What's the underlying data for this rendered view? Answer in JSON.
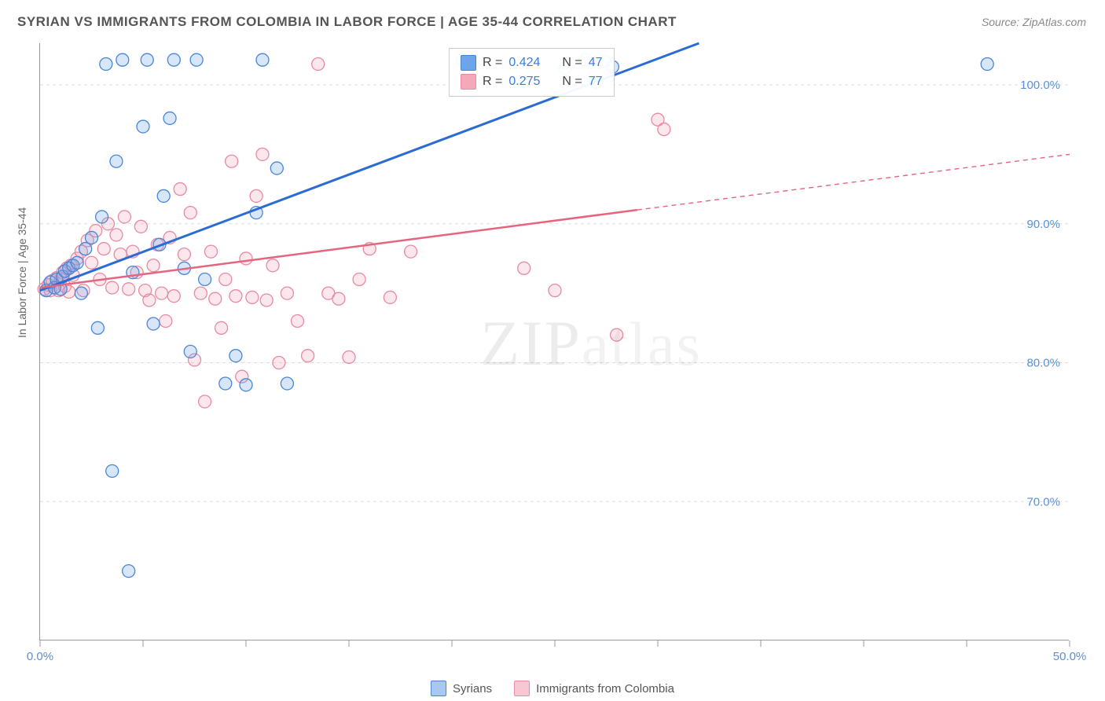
{
  "title": "SYRIAN VS IMMIGRANTS FROM COLOMBIA IN LABOR FORCE | AGE 35-44 CORRELATION CHART",
  "source": "Source: ZipAtlas.com",
  "ylabel": "In Labor Force | Age 35-44",
  "watermark_a": "ZIP",
  "watermark_b": "atlas",
  "chart": {
    "type": "scatter",
    "xlim": [
      0,
      50
    ],
    "ylim": [
      60,
      103
    ],
    "xtick_positions": [
      0,
      5,
      10,
      15,
      20,
      25,
      30,
      35,
      40,
      45,
      50
    ],
    "xtick_labels_shown": {
      "0": "0.0%",
      "50": "50.0%"
    },
    "ytick_positions": [
      70,
      80,
      90,
      100
    ],
    "ytick_labels": [
      "70.0%",
      "80.0%",
      "90.0%",
      "100.0%"
    ],
    "grid_color": "#dddddd",
    "background_color": "#ffffff",
    "axis_color": "#999999",
    "tick_label_color": "#5b8fd6",
    "marker_radius": 8,
    "marker_stroke_width": 1.3,
    "marker_fill_opacity": 0.28,
    "series": [
      {
        "name": "Syrians",
        "color": "#6ea4e8",
        "stroke": "#4a86d8",
        "line_color": "#2b6cd4",
        "line_width": 3,
        "r": 0.424,
        "n": 47,
        "trend": {
          "x1": 0,
          "y1": 85.2,
          "x2": 32,
          "y2": 103
        },
        "points": [
          [
            0.3,
            85.2
          ],
          [
            0.5,
            85.8
          ],
          [
            0.7,
            85.4
          ],
          [
            0.8,
            86.0
          ],
          [
            1.0,
            85.3
          ],
          [
            1.1,
            86.2
          ],
          [
            1.2,
            86.6
          ],
          [
            1.4,
            86.8
          ],
          [
            1.6,
            87.0
          ],
          [
            1.8,
            87.2
          ],
          [
            2.0,
            85.0
          ],
          [
            2.2,
            88.2
          ],
          [
            2.5,
            89.0
          ],
          [
            2.8,
            82.5
          ],
          [
            3.0,
            90.5
          ],
          [
            3.2,
            101.5
          ],
          [
            3.5,
            72.2
          ],
          [
            3.7,
            94.5
          ],
          [
            4.0,
            101.8
          ],
          [
            4.3,
            65.0
          ],
          [
            4.5,
            86.5
          ],
          [
            5.0,
            97.0
          ],
          [
            5.2,
            101.8
          ],
          [
            5.5,
            82.8
          ],
          [
            5.8,
            88.5
          ],
          [
            6.0,
            92.0
          ],
          [
            6.3,
            97.6
          ],
          [
            6.5,
            101.8
          ],
          [
            7.0,
            86.8
          ],
          [
            7.3,
            80.8
          ],
          [
            7.6,
            101.8
          ],
          [
            8.0,
            86.0
          ],
          [
            9.0,
            78.5
          ],
          [
            9.5,
            80.5
          ],
          [
            10.0,
            78.4
          ],
          [
            10.5,
            90.8
          ],
          [
            10.8,
            101.8
          ],
          [
            11.5,
            94.0
          ],
          [
            12.0,
            78.5
          ],
          [
            20.5,
            101.8
          ],
          [
            25.5,
            101.2
          ],
          [
            26.5,
            101.8
          ],
          [
            27.0,
            100.2
          ],
          [
            27.4,
            101.7
          ],
          [
            27.8,
            101.3
          ],
          [
            46.0,
            101.5
          ]
        ]
      },
      {
        "name": "Immigrants from Colombia",
        "color": "#f4a9bb",
        "stroke": "#e88aa3",
        "line_color": "#e5647f",
        "line_width": 2.5,
        "r": 0.275,
        "n": 77,
        "trend": {
          "x1": 0,
          "y1": 85.4,
          "x2": 29,
          "y2": 91.0
        },
        "trend_extrap": {
          "x1": 29,
          "y1": 91.0,
          "x2": 50,
          "y2": 95.0
        },
        "points": [
          [
            0.2,
            85.3
          ],
          [
            0.4,
            85.6
          ],
          [
            0.5,
            85.2
          ],
          [
            0.6,
            85.9
          ],
          [
            0.7,
            85.4
          ],
          [
            0.8,
            86.1
          ],
          [
            0.9,
            85.2
          ],
          [
            1.0,
            86.0
          ],
          [
            1.1,
            86.5
          ],
          [
            1.2,
            85.5
          ],
          [
            1.3,
            86.8
          ],
          [
            1.4,
            85.1
          ],
          [
            1.5,
            87.0
          ],
          [
            1.6,
            86.3
          ],
          [
            1.8,
            87.5
          ],
          [
            2.0,
            88.0
          ],
          [
            2.1,
            85.2
          ],
          [
            2.3,
            88.8
          ],
          [
            2.5,
            87.2
          ],
          [
            2.7,
            89.5
          ],
          [
            2.9,
            86.0
          ],
          [
            3.1,
            88.2
          ],
          [
            3.3,
            90.0
          ],
          [
            3.5,
            85.4
          ],
          [
            3.7,
            89.2
          ],
          [
            3.9,
            87.8
          ],
          [
            4.1,
            90.5
          ],
          [
            4.3,
            85.3
          ],
          [
            4.5,
            88.0
          ],
          [
            4.7,
            86.5
          ],
          [
            4.9,
            89.8
          ],
          [
            5.1,
            85.2
          ],
          [
            5.3,
            84.5
          ],
          [
            5.5,
            87.0
          ],
          [
            5.7,
            88.5
          ],
          [
            5.9,
            85.0
          ],
          [
            6.1,
            83.0
          ],
          [
            6.3,
            89.0
          ],
          [
            6.5,
            84.8
          ],
          [
            6.8,
            92.5
          ],
          [
            7.0,
            87.8
          ],
          [
            7.3,
            90.8
          ],
          [
            7.5,
            80.2
          ],
          [
            7.8,
            85.0
          ],
          [
            8.0,
            77.2
          ],
          [
            8.3,
            88.0
          ],
          [
            8.5,
            84.6
          ],
          [
            8.8,
            82.5
          ],
          [
            9.0,
            86.0
          ],
          [
            9.3,
            94.5
          ],
          [
            9.5,
            84.8
          ],
          [
            9.8,
            79.0
          ],
          [
            10.0,
            87.5
          ],
          [
            10.3,
            84.7
          ],
          [
            10.5,
            92.0
          ],
          [
            10.8,
            95.0
          ],
          [
            11.0,
            84.5
          ],
          [
            11.3,
            87.0
          ],
          [
            11.6,
            80.0
          ],
          [
            12.0,
            85.0
          ],
          [
            12.5,
            83.0
          ],
          [
            13.0,
            80.5
          ],
          [
            13.5,
            101.5
          ],
          [
            14.0,
            85.0
          ],
          [
            14.5,
            84.6
          ],
          [
            15.0,
            80.4
          ],
          [
            15.5,
            86.0
          ],
          [
            16.0,
            88.2
          ],
          [
            17.0,
            84.7
          ],
          [
            18.0,
            88.0
          ],
          [
            23.5,
            86.8
          ],
          [
            25.0,
            85.2
          ],
          [
            28.0,
            82.0
          ],
          [
            30.0,
            97.5
          ],
          [
            30.3,
            96.8
          ]
        ]
      }
    ]
  },
  "legend_stats": {
    "r_label": "R =",
    "n_label": "N ="
  },
  "bottom_legend": [
    {
      "label": "Syrians",
      "fill": "#a9c8f0",
      "stroke": "#4a86d8"
    },
    {
      "label": "Immigrants from Colombia",
      "fill": "#f7c8d3",
      "stroke": "#e88aa3"
    }
  ]
}
